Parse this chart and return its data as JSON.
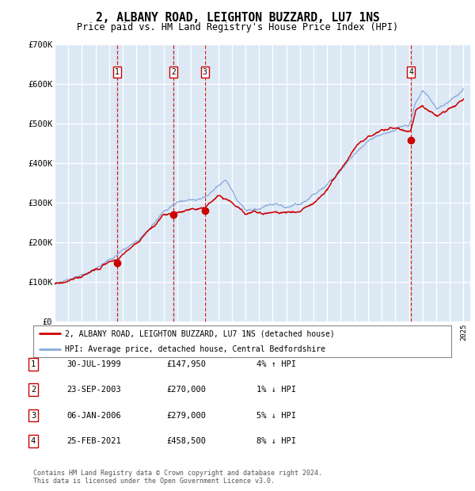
{
  "title": "2, ALBANY ROAD, LEIGHTON BUZZARD, LU7 1NS",
  "subtitle": "Price paid vs. HM Land Registry's House Price Index (HPI)",
  "title_fontsize": 10.5,
  "subtitle_fontsize": 8.5,
  "background_color": "#dce9f5",
  "plot_bg_color": "#dce9f5",
  "ylim": [
    0,
    700000
  ],
  "yticks": [
    0,
    100000,
    200000,
    300000,
    400000,
    500000,
    600000,
    700000
  ],
  "ytick_labels": [
    "£0",
    "£100K",
    "£200K",
    "£300K",
    "£400K",
    "£500K",
    "£600K",
    "£700K"
  ],
  "sale_dates": [
    1999.57,
    2003.73,
    2006.02,
    2021.15
  ],
  "sale_prices": [
    147950,
    270000,
    279000,
    458500
  ],
  "sale_labels": [
    "1",
    "2",
    "3",
    "4"
  ],
  "red_line_color": "#cc0000",
  "blue_line_color": "#88aadd",
  "marker_color": "#cc0000",
  "vline_color": "#cc0000",
  "legend_label_red": "2, ALBANY ROAD, LEIGHTON BUZZARD, LU7 1NS (detached house)",
  "legend_label_blue": "HPI: Average price, detached house, Central Bedfordshire",
  "table_rows": [
    [
      "1",
      "30-JUL-1999",
      "£147,950",
      "4% ↑ HPI"
    ],
    [
      "2",
      "23-SEP-2003",
      "£270,000",
      "1% ↓ HPI"
    ],
    [
      "3",
      "06-JAN-2006",
      "£279,000",
      "5% ↓ HPI"
    ],
    [
      "4",
      "25-FEB-2021",
      "£458,500",
      "8% ↓ HPI"
    ]
  ],
  "footer": "Contains HM Land Registry data © Crown copyright and database right 2024.\nThis data is licensed under the Open Government Licence v3.0."
}
